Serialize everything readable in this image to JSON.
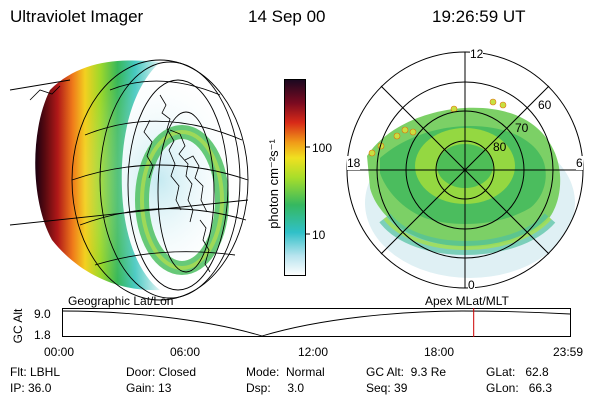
{
  "header": {
    "title": "Ultraviolet Imager",
    "date": "14 Sep 00",
    "time": "19:26:59 UT"
  },
  "colorbar": {
    "unit": "photon cm⁻²s⁻¹",
    "ticks": [
      "100",
      "10"
    ]
  },
  "polar_plot": {
    "mlt_labels": [
      "12",
      "18",
      "6",
      "0"
    ],
    "lat_labels": [
      "60",
      "70",
      "80"
    ]
  },
  "orbit": {
    "left_label": "Geographic Lat/Lon",
    "right_label": "Apex MLat/MLT",
    "axis_title": "GC Alt",
    "y_ticks": [
      "9.0",
      "1.8"
    ],
    "time_ticks": [
      "00:00",
      "06:00",
      "12:00",
      "18:00",
      "23:59"
    ],
    "current_time_hours": 19.45,
    "marker_color": "#cc0000"
  },
  "status": {
    "filter": "Flt: LBHL",
    "ip": "IP: 36.0",
    "door": "Door: Closed",
    "gain": "Gain: 13",
    "mode": "Mode:  Normal",
    "dsp": "Dsp:     3.0",
    "gc_alt": "GC Alt:  9.3 Re",
    "seq": "Seq: 39",
    "glat": "GLat:   62.8",
    "glon": "GLon:   66.3"
  }
}
